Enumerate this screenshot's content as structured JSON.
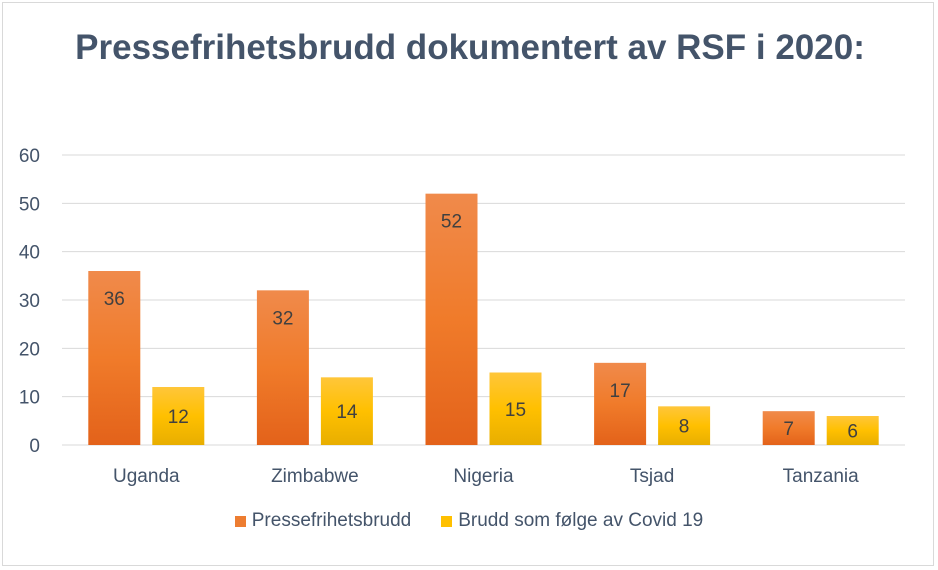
{
  "chart_data": {
    "type": "bar",
    "title": "Pressefrihetsbrudd dokumentert av RSF i 2020:",
    "categories": [
      "Uganda",
      "Zimbabwe",
      "Nigeria",
      "Tsjad",
      "Tanzania"
    ],
    "series": [
      {
        "name": "Pressefrihetsbrudd",
        "values": [
          36,
          32,
          52,
          17,
          7
        ],
        "color": "#ed7d31"
      },
      {
        "name": "Brudd som følge av Covid 19",
        "values": [
          12,
          14,
          15,
          8,
          6
        ],
        "color": "#ffc000"
      }
    ],
    "ylim": [
      0,
      60
    ],
    "yticks": [
      0,
      10,
      20,
      30,
      40,
      50,
      60
    ],
    "grid": true,
    "legend": "bottom",
    "data_labels": true
  }
}
